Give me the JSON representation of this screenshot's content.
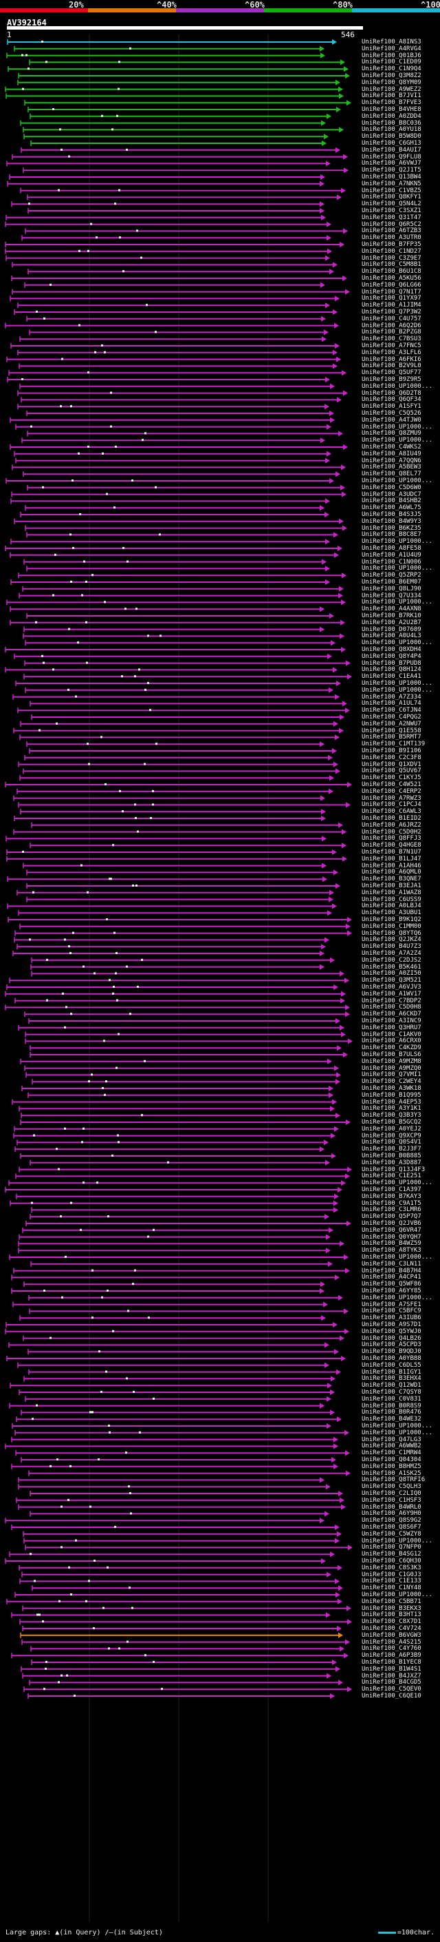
{
  "query": {
    "id": "AV392164",
    "start": "1",
    "end": "546"
  },
  "legend": {
    "scale": [
      {
        "label": "20%",
        "color": "#e8001d"
      },
      {
        "label": "^40%",
        "color": "#e07800"
      },
      {
        "label": "^60%",
        "color": "#a030c0"
      },
      {
        "label": "^80%",
        "color": "#10b010"
      },
      {
        "label": "^100%",
        "color": "#18b8d0"
      }
    ]
  },
  "colors": {
    "cyan": "#16c8e0",
    "green": "#18c018",
    "magenta": "#cc22cc",
    "orange": "#ee8800",
    "background": "#000000"
  },
  "hits": [
    "UniRef100_A8INS3",
    "UniRef100_A4RVG4",
    "UniRef100_Q01BJ6",
    "UniRef100_C1ED09",
    "UniRef100_C1N9Q4",
    "UniRef100_Q3M8Z2",
    "UniRef100_Q8YM09",
    "UniRef100_A9WEZ2",
    "UniRef100_B7JVI1",
    "UniRef100_B7FVE3",
    "UniRef100_B4VHE8",
    "UniRef100_A0ZDD4",
    "UniRef100_B8C036",
    "UniRef100_A0YU18",
    "UniRef100_B5W8D0",
    "UniRef100_C6GH13",
    "UniRef100_B4AUI7",
    "UniRef100_Q9FLU8",
    "UniRef100_A6VWJ7",
    "UniRef100_Q2J1T5",
    "UniRef100_Q13BW4",
    "UniRef100_A7NKN5",
    "UniRef100_C1VBZ5",
    "UniRef100_Q8KFY1",
    "UniRef100_Q5N4L2",
    "UniRef100_C3SXZ1",
    "UniRef100_Q31T47",
    "UniRef100_Q6R5C2",
    "UniRef100_A6TZB3",
    "UniRef100_A3UTR0",
    "UniRef100_B7FP35",
    "UniRef100_C1ND27",
    "UniRef100_C3Z9E7",
    "UniRef100_C5M8B1",
    "UniRef100_B6U1C8",
    "UniRef100_A5KU56",
    "UniRef100_Q6LG66",
    "UniRef100_Q7N1T7",
    "UniRef100_Q1YX97",
    "UniRef100_A1JIM4",
    "UniRef100_Q7P3W2",
    "UniRef100_C4U757",
    "UniRef100_A6Q2D6",
    "UniRef100_B2PZG8",
    "UniRef100_C7BSU3",
    "UniRef100_A7FNC5",
    "UniRef100_A3LFL6",
    "UniRef100_A6FKI6",
    "UniRef100_B2V9L0",
    "UniRef100_Q5UF77",
    "UniRef100_B9Z9R5",
    "UniRef100_UP1000...",
    "UniRef100_Q6D2T8",
    "UniRef100_Q6QF34",
    "UniRef100_A1SFY1",
    "UniRef100_C5Q526",
    "UniRef100_A4TJW0",
    "UniRef100_UP1000...",
    "UniRef100_Q8ZMU9",
    "UniRef100_UP1000...",
    "UniRef100_C4WKS2",
    "UniRef100_A8IU49",
    "UniRef100_A7QQN6",
    "UniRef100_A5BEW3",
    "UniRef100_Q8EL77",
    "UniRef100_UP1000...",
    "UniRef100_C5D6W0",
    "UniRef100_A3UDC7",
    "UniRef100_B4SHB2",
    "UniRef100_A6WL75",
    "UniRef100_B4S3J5",
    "UniRef100_B4W9Y3",
    "UniRef100_B6KZ35",
    "UniRef100_B8C8E7",
    "UniRef100_UP1000...",
    "UniRef100_A8FE58",
    "UniRef100_A1U4U9",
    "UniRef100_C1N006",
    "UniRef100_UP1000...",
    "UniRef100_Q5ZRP2",
    "UniRef100_B6EM07",
    "UniRef100_Q8LJ90",
    "UniRef100_Q7U334",
    "UniRef100_UP1000...",
    "UniRef100_A4AXN8",
    "UniRef100_B7RK10",
    "UniRef100_A2U2B7",
    "UniRef100_D07609",
    "UniRef100_A0U4L3",
    "UniRef100_UP1000...",
    "UniRef100_Q8XDH4",
    "UniRef100_Q8Y4P4",
    "UniRef100_B7PUD8",
    "UniRef100_Q8H124",
    "UniRef100_C1EA41",
    "UniRef100_UP1000...",
    "UniRef100_UP1000...",
    "UniRef100_A7Z334",
    "UniRef100_A1UL74",
    "UniRef100_C6TJN4",
    "UniRef100_C4PQG2",
    "UniRef100_A2NWU7",
    "UniRef100_Q1E558",
    "UniRef100_B5RMT7",
    "UniRef100_C1MT139",
    "UniRef100_B9I106",
    "UniRef100_C2C3F8",
    "UniRef100_Q1XDV1",
    "UniRef100_Q5UV67",
    "UniRef100_C1KYJ5",
    "UniRef100_C4W521",
    "UniRef100_C4ERP2",
    "UniRef100_A7RWZ3",
    "UniRef100_C1PCJ4",
    "UniRef100_C6AWL3",
    "UniRef100_B1EID2",
    "UniRef100_A6JRZ2",
    "UniRef100_C5D0H2",
    "UniRef100_Q8FFJ3",
    "UniRef100_Q4HGE8",
    "UniRef100_B7N1U7",
    "UniRef100_B1LJ47",
    "UniRef100_A1AH46",
    "UniRef100_A6QML0",
    "UniRef100_B3QNE7",
    "UniRef100_B3EJA1",
    "UniRef100_A1WAZ8",
    "UniRef100_C6USS9",
    "UniRef100_A0LBJ4",
    "UniRef100_A3UBU1",
    "UniRef100_B9K1Q2",
    "UniRef100_C1MM00",
    "UniRef100_Q8YTQ6",
    "UniRef100_Q2JKZ4",
    "UniRef100_B4U7Z3",
    "UniRef100_A7A2Z4",
    "UniRef100_C2DJS2",
    "UniRef100_B5K461",
    "UniRef100_A0ZI50",
    "UniRef100_Q3M521",
    "UniRef100_A6VJV3",
    "UniRef100_A1WV17",
    "UniRef100_C7BDP2",
    "UniRef100_C5D0H8",
    "UniRef100_A6CKD7",
    "UniRef100_A3INC9",
    "UniRef100_Q3HRU7",
    "UniRef100_C1AKV0",
    "UniRef100_A6CRX0",
    "UniRef100_C4KZD9",
    "UniRef100_B7ULS6",
    "UniRef100_A9MZM8",
    "UniRef100_A9MZQ0",
    "UniRef100_Q7VMI1",
    "UniRef100_C2WEY4",
    "UniRef100_A3WK18",
    "UniRef100_B1Q995",
    "UniRef100_A4EP53",
    "UniRef100_A3Y1K1",
    "UniRef100_Q3B3Y3",
    "UniRef100_B5GCQ2",
    "UniRef100_A0YEJ2",
    "UniRef100_Q9XCP9",
    "UniRef100_Q0S4V1",
    "UniRef100_B2J3F7",
    "UniRef100_B0B885",
    "UniRef100_A3D887",
    "UniRef100_Q13J4F3",
    "UniRef100_C1E251",
    "UniRef100_UP1000...",
    "UniRef100_C1A397",
    "UniRef100_B7KAY3",
    "UniRef100_C9A1T5",
    "UniRef100_C3LMR6",
    "UniRef100_Q5P7Q7",
    "UniRef100_Q2JVB6",
    "UniRef100_Q6VR47",
    "UniRef100_Q0YQH7",
    "UniRef100_B4WZ59",
    "UniRef100_A8TYK3",
    "UniRef100_UP1000...",
    "UniRef100_C3LN11",
    "UniRef100_B4B7H4",
    "UniRef100_A4CP41",
    "UniRef100_Q5WF86",
    "UniRef100_A6YY85",
    "UniRef100_UP1000...",
    "UniRef100_A7SFE1",
    "UniRef100_C5BFC9",
    "UniRef100_A3IUB6",
    "UniRef100_A9S7D1",
    "UniRef100_Q5YWJ0",
    "UniRef100_Q4LB26",
    "UniRef100_A5CPD3",
    "UniRef100_B9QDJ0",
    "UniRef100_A0YB88",
    "UniRef100_C6DL55",
    "UniRef100_B1IGY1",
    "UniRef100_B3EHX4",
    "UniRef100_Q12WD1",
    "UniRef100_C7QSY8",
    "UniRef100_C0V831",
    "UniRef100_B0R8S9",
    "UniRef100_B0R476",
    "UniRef100_B4WE32",
    "UniRef100_UP1000...",
    "UniRef100_UP1000...",
    "UniRef100_Q47LG3",
    "UniRef100_A6WWB2",
    "UniRef100_C1MRW4",
    "UniRef100_Q04304",
    "UniRef100_B8HMZ5",
    "UniRef100_A1SK25",
    "UniRef100_Q8TRFI6",
    "UniRef100_C5QLH3",
    "UniRef100_C2LIQ0",
    "UniRef100_C1HSF3",
    "UniRef100_B4WRL0",
    "UniRef100_A6Y9H0",
    "UniRef100_Q8S9G2",
    "UniRef100_Q8S6F7",
    "UniRef100_C5WZY8",
    "UniRef100_UP1000...",
    "UniRef100_Q7NFP0",
    "UniRef100_B4SG12",
    "UniRef100_C6QH30",
    "UniRef100_C8S3K3",
    "UniRef100_C1G0J3",
    "UniRef100_C1E133",
    "UniRef100_C1NY48",
    "UniRef100_UP1000...",
    "UniRef100_C5BB71",
    "UniRef100_B3EKX3",
    "UniRef100_B3HT13",
    "UniRef100_C8X7D1",
    "UniRef100_C4V724",
    "UniRef100_B6VGW3",
    "UniRef100_A4S215",
    "UniRef100_C4Y760",
    "UniRef100_A6P3B9",
    "UniRef100_B1YEC8",
    "UniRef100_B1W4S1",
    "UniRef100_B4JXZ7",
    "UniRef100_B4CGD5",
    "UniRef100_C5QEV0",
    "UniRef100_C6QE10"
  ],
  "footer": {
    "gaps_label": "Large gaps:",
    "in_query_label": "(in Query)",
    "in_subject_label": "(in Subject)",
    "scale_label": "=100char."
  }
}
